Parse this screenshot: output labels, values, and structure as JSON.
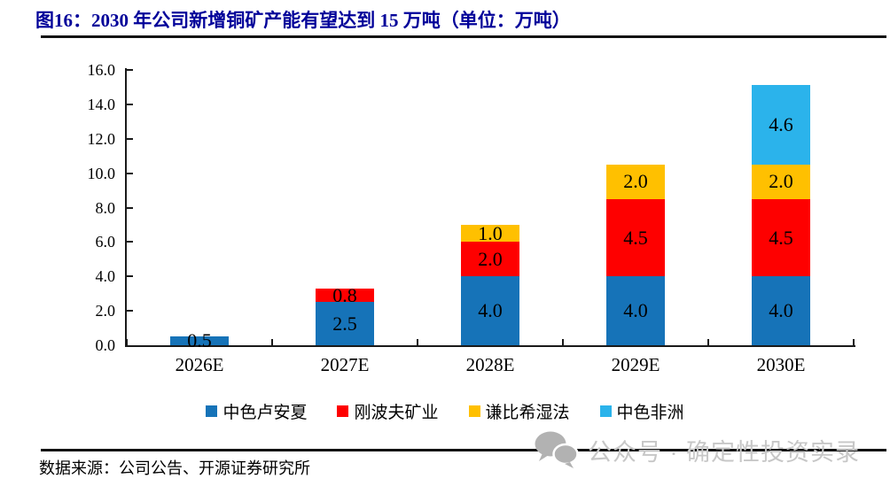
{
  "title": "图16：2030 年公司新增铜矿产能有望达到 15 万吨（单位：万吨）",
  "source": "数据来源：公司公告、开源证券研究所",
  "watermark": {
    "icon": "wechat-icon",
    "text": "公众号 · 确定性投资实录",
    "icon_color": "#b2b2b2",
    "text_color": "#c7c7c7"
  },
  "colors": {
    "title": "#000099",
    "axis": "#1a1a1a",
    "label": "#000000"
  },
  "chart_data": {
    "type": "bar",
    "stacked": true,
    "title": "2030年公司新增铜矿产能有望达到15万吨",
    "unit": "万吨",
    "categories": [
      "2026E",
      "2027E",
      "2028E",
      "2029E",
      "2030E"
    ],
    "series": [
      {
        "name": "中色卢安夏",
        "color": "#1673b8",
        "values": [
          0.5,
          2.5,
          4.0,
          4.0,
          4.0
        ]
      },
      {
        "name": "刚波夫矿业",
        "color": "#fe0000",
        "values": [
          0,
          0.8,
          2.0,
          4.5,
          4.5
        ]
      },
      {
        "name": "谦比希湿法",
        "color": "#ffc000",
        "values": [
          0,
          0,
          1.0,
          2.0,
          2.0
        ]
      },
      {
        "name": "中色非洲",
        "color": "#2bb3eb",
        "values": [
          0,
          0,
          0,
          0,
          4.6
        ]
      }
    ],
    "totals": [
      0.5,
      3.3,
      7.0,
      10.5,
      15.1
    ],
    "ylim": [
      0,
      16
    ],
    "ytick_step": 2,
    "yticklabels": [
      "0.0",
      "2.0",
      "4.0",
      "6.0",
      "8.0",
      "10.0",
      "12.0",
      "14.0",
      "16.0"
    ],
    "xlabel": "",
    "ylabel": "",
    "grid": false,
    "data_labels": true,
    "legend_position": "bottom"
  }
}
